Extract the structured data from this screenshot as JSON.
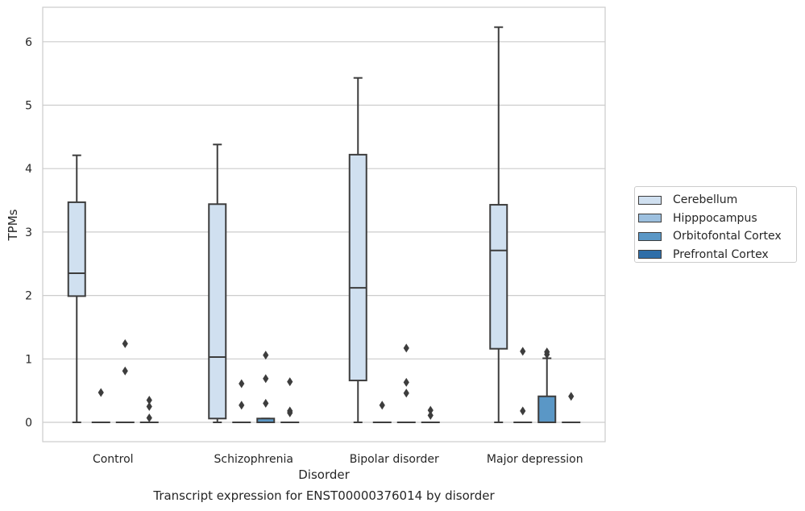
{
  "chart_data": {
    "type": "box",
    "title": "",
    "xlabel": "Disorder",
    "ylabel": "TPMs",
    "caption": "Transcript expression for ENST00000376014 by disorder",
    "ylim": [
      -0.3,
      6.55
    ],
    "yticks": [
      0,
      1,
      2,
      3,
      4,
      5,
      6
    ],
    "grid": true,
    "legend_position": "right",
    "categories": [
      "Control",
      "Schizophrenia",
      "Bipolar disorder",
      "Major depression"
    ],
    "series": [
      {
        "name": "Cerebellum",
        "color": "#d0e0f0",
        "boxes": [
          {
            "whislo": 0,
            "q1": 1.99,
            "med": 2.35,
            "q3": 3.47,
            "whishi": 4.21,
            "fliers": []
          },
          {
            "whislo": 0,
            "q1": 0.06,
            "med": 1.03,
            "q3": 3.44,
            "whishi": 4.38,
            "fliers": []
          },
          {
            "whislo": 0,
            "q1": 0.66,
            "med": 2.12,
            "q3": 4.22,
            "whishi": 5.43,
            "fliers": []
          },
          {
            "whislo": 0,
            "q1": 1.16,
            "med": 2.71,
            "q3": 3.43,
            "whishi": 6.23,
            "fliers": []
          }
        ]
      },
      {
        "name": "Hipppocampus",
        "color": "#9dc0df",
        "boxes": [
          {
            "whislo": 0,
            "q1": 0,
            "med": 0,
            "q3": 0,
            "whishi": 0,
            "fliers": [
              0.47
            ]
          },
          {
            "whislo": 0,
            "q1": 0,
            "med": 0,
            "q3": 0,
            "whishi": 0,
            "fliers": [
              0.27,
              0.61
            ]
          },
          {
            "whislo": 0,
            "q1": 0,
            "med": 0,
            "q3": 0,
            "whishi": 0,
            "fliers": [
              0.27
            ]
          },
          {
            "whislo": 0,
            "q1": 0,
            "med": 0,
            "q3": 0,
            "whishi": 0,
            "fliers": [
              0.18,
              1.12
            ]
          }
        ]
      },
      {
        "name": "Orbitofontal Cortex",
        "color": "#5a97c6",
        "boxes": [
          {
            "whislo": 0,
            "q1": 0,
            "med": 0,
            "q3": 0,
            "whishi": 0,
            "fliers": [
              0.81,
              1.24
            ]
          },
          {
            "whislo": 0,
            "q1": 0,
            "med": 0,
            "q3": 0.06,
            "whishi": 0.06,
            "fliers": [
              0.3,
              0.69,
              1.06
            ]
          },
          {
            "whislo": 0,
            "q1": 0,
            "med": 0,
            "q3": 0,
            "whishi": 0,
            "fliers": [
              0.46,
              0.63,
              1.17
            ]
          },
          {
            "whislo": 0,
            "q1": 0,
            "med": 0,
            "q3": 0.41,
            "whishi": 1.01,
            "fliers": [
              1.07,
              1.11
            ]
          }
        ]
      },
      {
        "name": "Prefrontal Cortex",
        "color": "#2f6ea8",
        "boxes": [
          {
            "whislo": 0,
            "q1": 0,
            "med": 0,
            "q3": 0,
            "whishi": 0,
            "fliers": [
              0.07,
              0.25,
              0.35
            ]
          },
          {
            "whislo": 0,
            "q1": 0,
            "med": 0,
            "q3": 0,
            "whishi": 0,
            "fliers": [
              0.15,
              0.18,
              0.64
            ]
          },
          {
            "whislo": 0,
            "q1": 0,
            "med": 0,
            "q3": 0,
            "whishi": 0,
            "fliers": [
              0.11,
              0.19
            ]
          },
          {
            "whislo": 0,
            "q1": 0,
            "med": 0,
            "q3": 0,
            "whishi": 0,
            "fliers": [
              0.41
            ]
          }
        ]
      }
    ]
  }
}
